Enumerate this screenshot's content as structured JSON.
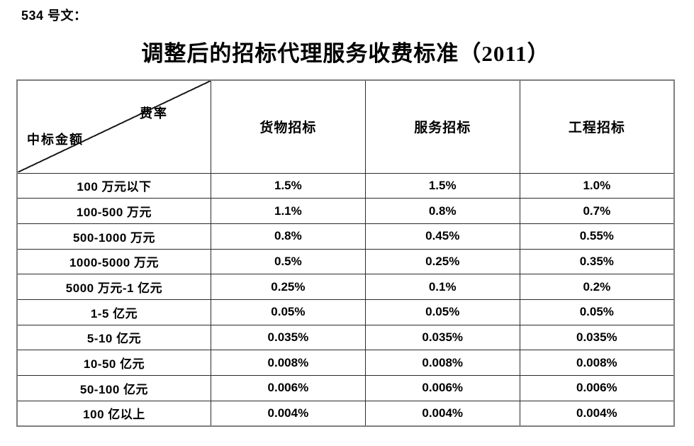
{
  "document": {
    "doc_label": "534 号文：",
    "title": "调整后的招标代理服务收费标准（2011）"
  },
  "table": {
    "corner": {
      "top_right": "费率",
      "bottom_left": "中标金额"
    },
    "columns": [
      "货物招标",
      "服务招标",
      "工程招标"
    ],
    "rows": [
      {
        "label": "100 万元以下",
        "goods": "1.5%",
        "service": "1.5%",
        "engineering": "1.0%"
      },
      {
        "label": "100-500 万元",
        "goods": "1.1%",
        "service": "0.8%",
        "engineering": "0.7%"
      },
      {
        "label": "500-1000 万元",
        "goods": "0.8%",
        "service": "0.45%",
        "engineering": "0.55%"
      },
      {
        "label": "1000-5000 万元",
        "goods": "0.5%",
        "service": "0.25%",
        "engineering": "0.35%"
      },
      {
        "label": "5000 万元-1 亿元",
        "goods": "0.25%",
        "service": "0.1%",
        "engineering": "0.2%"
      },
      {
        "label": "1-5 亿元",
        "goods": "0.05%",
        "service": "0.05%",
        "engineering": "0.05%"
      },
      {
        "label": "5-10 亿元",
        "goods": "0.035%",
        "service": "0.035%",
        "engineering": "0.035%"
      },
      {
        "label": "10-50 亿元",
        "goods": "0.008%",
        "service": "0.008%",
        "engineering": "0.008%"
      },
      {
        "label": "50-100 亿元",
        "goods": "0.006%",
        "service": "0.006%",
        "engineering": "0.006%"
      },
      {
        "label": "100 亿以上",
        "goods": "0.004%",
        "service": "0.004%",
        "engineering": "0.004%"
      }
    ]
  },
  "chart_data": {
    "type": "table",
    "title": "调整后的招标代理服务收费标准（2011）",
    "row_header": "中标金额",
    "column_header": "费率",
    "categories": [
      "100 万元以下",
      "100-500 万元",
      "500-1000 万元",
      "1000-5000 万元",
      "5000 万元-1 亿元",
      "1-5 亿元",
      "5-10 亿元",
      "10-50 亿元",
      "50-100 亿元",
      "100 亿以上"
    ],
    "series": [
      {
        "name": "货物招标",
        "values": [
          "1.5%",
          "1.1%",
          "0.8%",
          "0.5%",
          "0.25%",
          "0.05%",
          "0.035%",
          "0.008%",
          "0.006%",
          "0.004%"
        ]
      },
      {
        "name": "服务招标",
        "values": [
          "1.5%",
          "0.8%",
          "0.45%",
          "0.25%",
          "0.1%",
          "0.05%",
          "0.035%",
          "0.008%",
          "0.006%",
          "0.004%"
        ]
      },
      {
        "name": "工程招标",
        "values": [
          "1.0%",
          "0.7%",
          "0.55%",
          "0.35%",
          "0.2%",
          "0.05%",
          "0.035%",
          "0.008%",
          "0.006%",
          "0.004%"
        ]
      }
    ]
  }
}
